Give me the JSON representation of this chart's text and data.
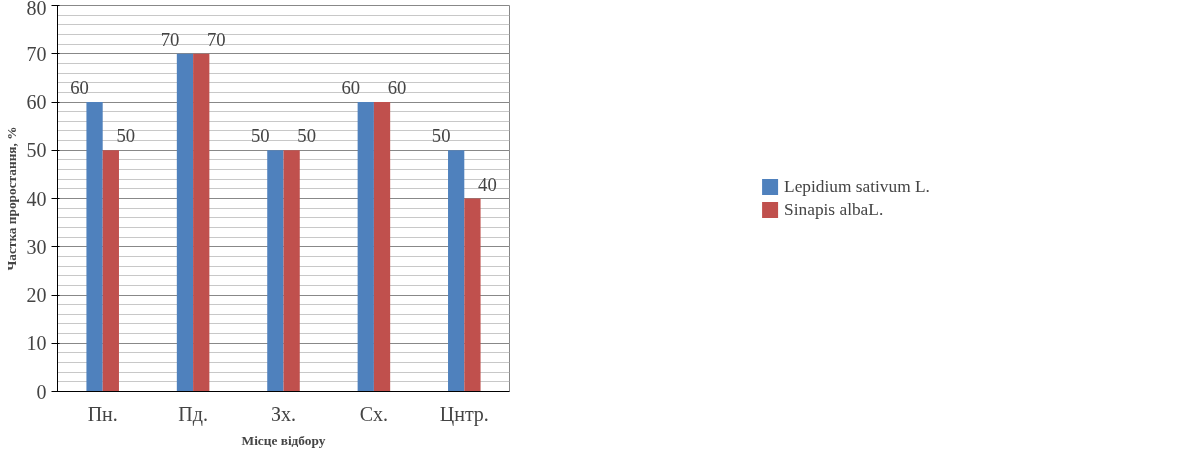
{
  "chart_data": {
    "type": "bar",
    "xlabel": "Місце відбору",
    "ylabel": "Частка проростання, %",
    "categories": [
      "Пн.",
      "Пд.",
      "Зх.",
      "Сх.",
      "Цнтр."
    ],
    "series": [
      {
        "name": "Lepidium sativum L.",
        "color": "#4f81bd",
        "values": [
          60,
          70,
          50,
          60,
          50
        ]
      },
      {
        "name": "Sinapis albaL.",
        "color": "#c0504d",
        "values": [
          50,
          70,
          50,
          60,
          40
        ]
      }
    ],
    "ylim": [
      0,
      80
    ],
    "yticks": [
      0,
      10,
      20,
      30,
      40,
      50,
      60,
      70,
      80
    ],
    "grid": "y",
    "legend": "right",
    "data_labels": true
  }
}
